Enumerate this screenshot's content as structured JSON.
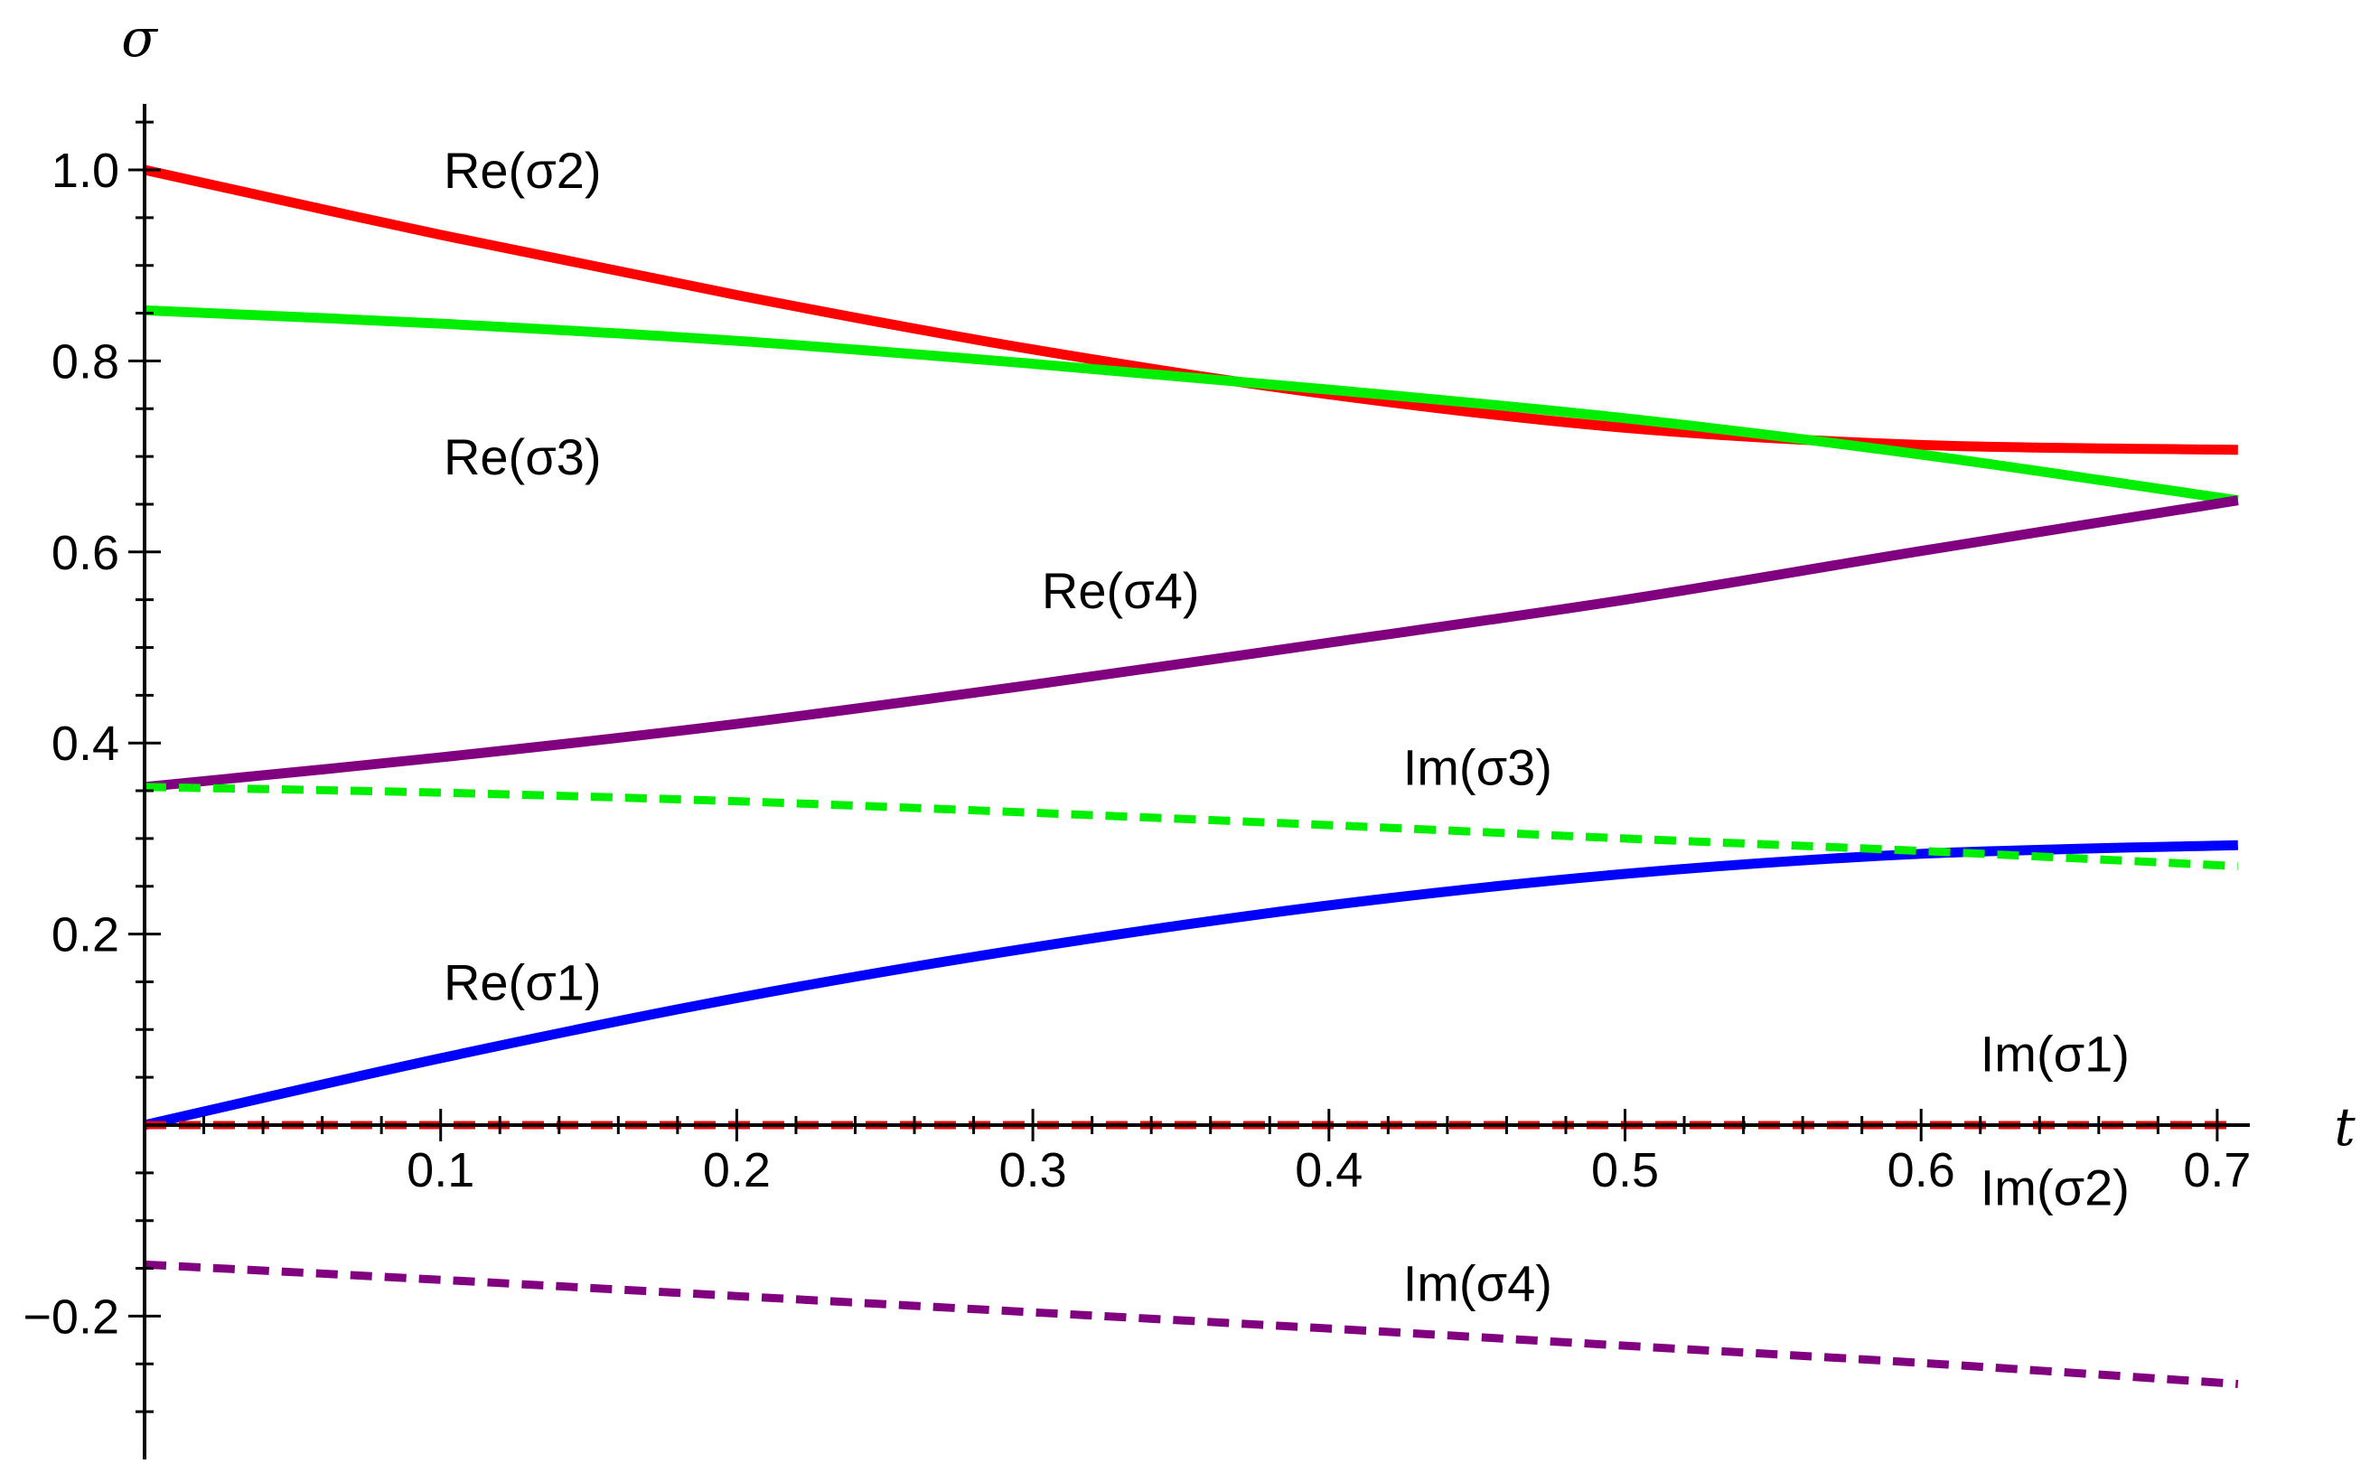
{
  "chart_data": {
    "type": "line",
    "xlabel": "t",
    "ylabel": "σ",
    "xlim": [
      0,
      0.707
    ],
    "ylim": [
      -0.34,
      1.07
    ],
    "x_ticks": [
      0.1,
      0.2,
      0.3,
      0.4,
      0.5,
      0.6,
      0.7
    ],
    "x_tick_labels": [
      "0.1",
      "0.2",
      "0.3",
      "0.4",
      "0.5",
      "0.6",
      "0.7"
    ],
    "y_ticks": [
      -0.2,
      0.2,
      0.4,
      0.6,
      0.8,
      1.0
    ],
    "y_tick_labels": [
      "−0.2",
      "0.2",
      "0.4",
      "0.6",
      "0.8",
      "1.0"
    ],
    "grid": false,
    "series": [
      {
        "name": "Re(σ1)",
        "color": "#0000ff",
        "dashed": false,
        "x": [
          0,
          0.1,
          0.2,
          0.3,
          0.4,
          0.5,
          0.6,
          0.707
        ],
        "y": [
          0.0,
          0.07,
          0.133,
          0.186,
          0.23,
          0.263,
          0.284,
          0.293
        ]
      },
      {
        "name": "Re(σ2)",
        "color": "#ff0000",
        "dashed": false,
        "x": [
          0,
          0.1,
          0.2,
          0.3,
          0.4,
          0.5,
          0.6,
          0.707
        ],
        "y": [
          1.0,
          0.932,
          0.869,
          0.812,
          0.765,
          0.73,
          0.712,
          0.707
        ]
      },
      {
        "name": "Re(σ3)",
        "color": "#00ee00",
        "dashed": false,
        "x": [
          0,
          0.1,
          0.2,
          0.3,
          0.4,
          0.5,
          0.6,
          0.707
        ],
        "y": [
          0.853,
          0.839,
          0.821,
          0.797,
          0.77,
          0.74,
          0.702,
          0.654
        ]
      },
      {
        "name": "Re(σ4)",
        "color": "#800080",
        "dashed": false,
        "x": [
          0,
          0.1,
          0.2,
          0.3,
          0.4,
          0.5,
          0.6,
          0.707
        ],
        "y": [
          0.354,
          0.385,
          0.42,
          0.461,
          0.505,
          0.55,
          0.601,
          0.654
        ]
      },
      {
        "name": "Im(σ1)",
        "color": "#0000ff",
        "dashed": true,
        "x": [
          0,
          0.707
        ],
        "y": [
          0.0,
          0.0
        ]
      },
      {
        "name": "Im(σ2)",
        "color": "#ff0000",
        "dashed": true,
        "x": [
          0,
          0.707
        ],
        "y": [
          0.0,
          0.0
        ]
      },
      {
        "name": "Im(σ3)",
        "color": "#00ee00",
        "dashed": true,
        "x": [
          0,
          0.1,
          0.2,
          0.3,
          0.4,
          0.5,
          0.6,
          0.707
        ],
        "y": [
          0.354,
          0.348,
          0.339,
          0.327,
          0.314,
          0.3,
          0.287,
          0.271
        ]
      },
      {
        "name": "Im(σ4)",
        "color": "#800080",
        "dashed": true,
        "x": [
          0,
          0.1,
          0.2,
          0.3,
          0.4,
          0.5,
          0.6,
          0.707
        ],
        "y": [
          -0.146,
          -0.162,
          -0.179,
          -0.196,
          -0.213,
          -0.231,
          -0.249,
          -0.271
        ]
      }
    ],
    "annotations": [
      {
        "text": "Re(σ2)",
        "x": 0.101,
        "y": 1.0
      },
      {
        "text": "Re(σ3)",
        "x": 0.101,
        "y": 0.7
      },
      {
        "text": "Re(σ4)",
        "x": 0.303,
        "y": 0.56
      },
      {
        "text": "Im(σ3)",
        "x": 0.425,
        "y": 0.375
      },
      {
        "text": "Re(σ1)",
        "x": 0.101,
        "y": 0.15
      },
      {
        "text": "Im(σ1)",
        "x": 0.62,
        "y": 0.075
      },
      {
        "text": "Im(σ2)",
        "x": 0.62,
        "y": -0.065
      },
      {
        "text": "Im(σ4)",
        "x": 0.425,
        "y": -0.165
      }
    ]
  }
}
